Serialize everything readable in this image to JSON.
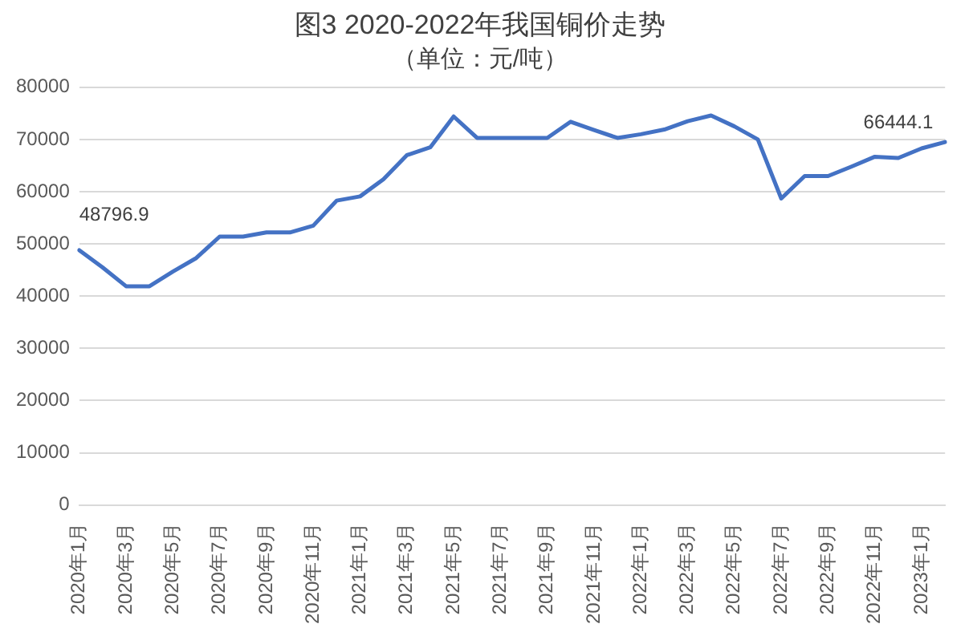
{
  "chart_data": {
    "type": "line",
    "title": "图3 2020-2022年我国铜价走势",
    "subtitle": "（单位：元/吨）",
    "categories": [
      "2020年1月",
      null,
      "2020年3月",
      null,
      "2020年5月",
      null,
      "2020年7月",
      null,
      "2020年9月",
      null,
      "2020年11月",
      null,
      "2021年1月",
      null,
      "2021年3月",
      null,
      "2021年5月",
      null,
      "2021年7月",
      null,
      "2021年9月",
      null,
      "2021年11月",
      null,
      "2022年1月",
      null,
      "2022年3月",
      null,
      "2022年5月",
      null,
      "2022年7月",
      null,
      "2022年9月",
      null,
      "2022年11月",
      null,
      "2023年1月",
      null
    ],
    "series": [
      {
        "color": "#4472c4",
        "values": [
          48796.9,
          45500,
          41900,
          41900,
          44700,
          47300,
          51400,
          51400,
          52200,
          52200,
          53500,
          58300,
          59100,
          62400,
          67000,
          68500,
          74400,
          70300,
          70300,
          70300,
          70300,
          73400,
          71800,
          70300,
          71000,
          71900,
          73500,
          74600,
          72500,
          70000,
          58700,
          63000,
          63000,
          64800,
          66700,
          66444.1,
          68300,
          69500
        ],
        "value_labels": [
          "48796.9",
          null,
          null,
          null,
          null,
          null,
          null,
          null,
          null,
          null,
          null,
          null,
          null,
          null,
          null,
          null,
          null,
          null,
          null,
          null,
          null,
          null,
          null,
          null,
          null,
          null,
          null,
          null,
          null,
          null,
          null,
          null,
          null,
          null,
          null,
          "66444.1",
          null,
          null
        ]
      }
    ],
    "ylim": [
      0,
      80000
    ],
    "yticks": [
      0,
      10000,
      20000,
      30000,
      40000,
      50000,
      60000,
      70000,
      80000
    ],
    "grid": "y",
    "legend": false,
    "marker": "none",
    "line_style": "solid"
  }
}
